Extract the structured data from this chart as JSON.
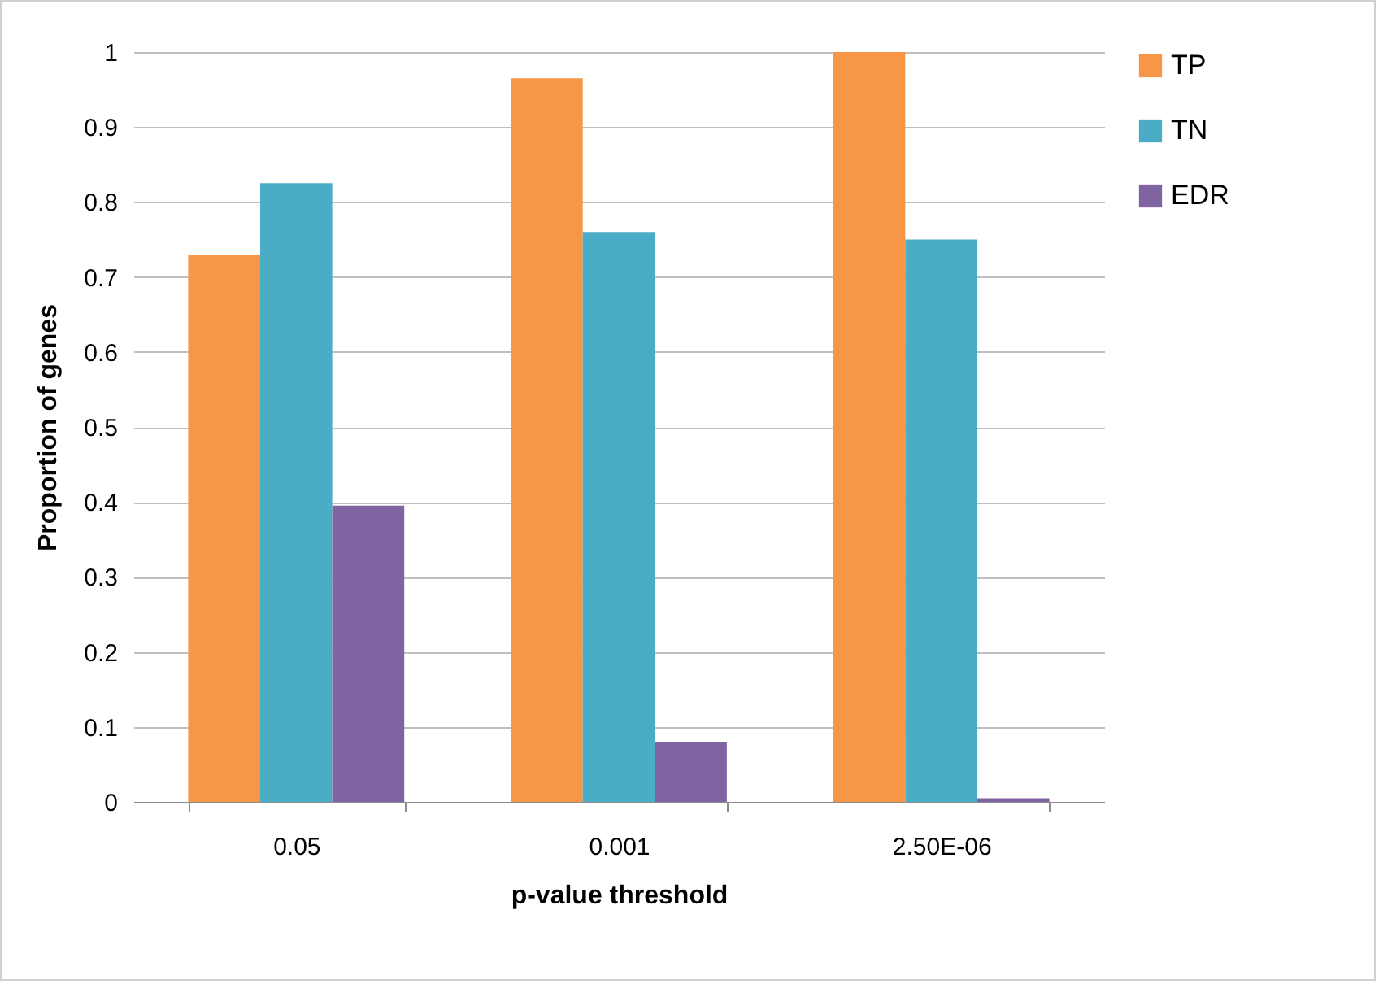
{
  "chart_data": {
    "type": "bar",
    "xlabel": "p-value threshold",
    "ylabel": "Proportion of genes",
    "categories": [
      "0.05",
      "0.001",
      "2.50E-06"
    ],
    "series": [
      {
        "name": "TP",
        "color": "#f79646",
        "values": [
          0.73,
          0.965,
          1.0
        ]
      },
      {
        "name": "TN",
        "color": "#4bacc6",
        "values": [
          0.825,
          0.76,
          0.75
        ]
      },
      {
        "name": "EDR",
        "color": "#8064a2",
        "values": [
          0.395,
          0.08,
          0.005
        ]
      }
    ],
    "ylim": [
      0,
      1
    ],
    "yticks": [
      0,
      0.1,
      0.2,
      0.3,
      0.4,
      0.5,
      0.6,
      0.7,
      0.8,
      0.9,
      1
    ],
    "grid": "y",
    "legend": "right"
  }
}
